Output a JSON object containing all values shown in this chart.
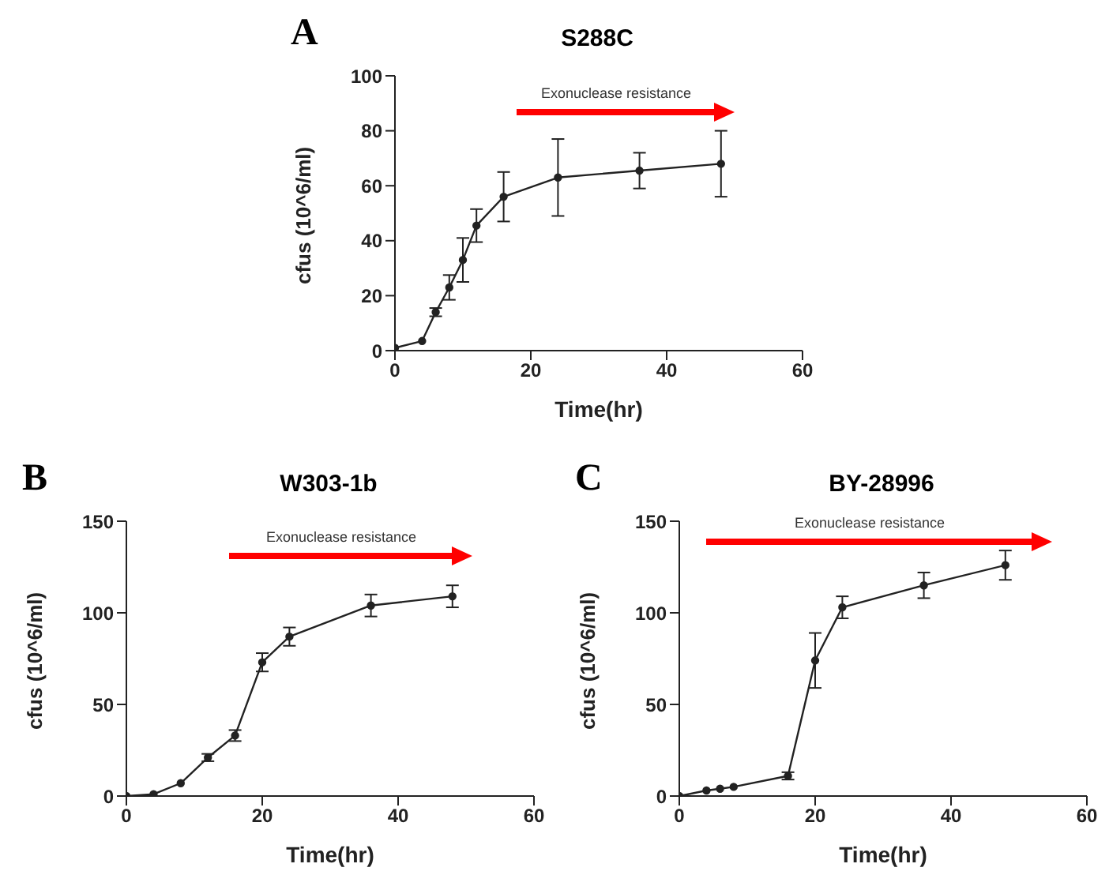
{
  "chart_data": [
    {
      "type": "line",
      "title": "S288C",
      "xlabel": "Time(hr)",
      "ylabel": "cfus (10^6/ml)",
      "annotations": [
        "A",
        "Exonuclease resistance"
      ],
      "color": "#222222",
      "marker": "circle",
      "x": [
        0,
        4,
        6,
        8,
        10,
        12,
        16,
        24,
        36,
        48
      ],
      "values": [
        1,
        3.5,
        14,
        23,
        33,
        45.5,
        56,
        63,
        65.5,
        68
      ],
      "errors": [
        null,
        null,
        1.5,
        4.5,
        8,
        6,
        9,
        14,
        6.5,
        12
      ],
      "xlim": [
        0,
        60
      ],
      "xticks": [
        0,
        20,
        40,
        60
      ],
      "ylim": [
        0,
        100
      ],
      "yticks": [
        0,
        20,
        40,
        60,
        80,
        100
      ]
    },
    {
      "type": "line",
      "title": "W303-1b",
      "xlabel": "Time(hr)",
      "ylabel": "cfus (10^6/ml)",
      "annotations": [
        "B",
        "Exonuclease resistance"
      ],
      "color": "#222222",
      "marker": "circle",
      "x": [
        0,
        4,
        8,
        12,
        16,
        20,
        24,
        36,
        48
      ],
      "values": [
        0,
        1,
        7,
        21,
        33,
        73,
        87,
        104,
        109
      ],
      "errors": [
        null,
        null,
        null,
        2,
        3,
        5,
        5,
        6,
        6
      ],
      "xlim": [
        0,
        60
      ],
      "xticks": [
        0,
        20,
        40,
        60
      ],
      "ylim": [
        0,
        150
      ],
      "yticks": [
        0,
        50,
        100,
        150
      ]
    },
    {
      "type": "line",
      "title": "BY-28996",
      "xlabel": "Time(hr)",
      "ylabel": "cfus (10^6/ml)",
      "annotations": [
        "C",
        "Exonuclease resistance"
      ],
      "color": "#222222",
      "marker": "circle",
      "x": [
        0,
        4,
        6,
        8,
        16,
        20,
        24,
        36,
        48
      ],
      "values": [
        0,
        3,
        4,
        5,
        11,
        74,
        103,
        115,
        126
      ],
      "errors": [
        null,
        null,
        null,
        null,
        2,
        15,
        6,
        7,
        8
      ],
      "xlim": [
        0,
        60
      ],
      "xticks": [
        0,
        20,
        40,
        60
      ],
      "ylim": [
        0,
        150
      ],
      "yticks": [
        0,
        50,
        100,
        150
      ]
    }
  ]
}
